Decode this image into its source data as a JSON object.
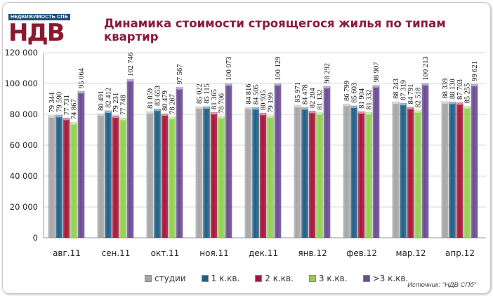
{
  "logo": {
    "top_text": "НЕДВИЖИМОСТЬ СПБ",
    "main_text": "НДВ"
  },
  "chart_data": {
    "type": "bar",
    "title": "Динамика стоимости строящегося жилья по типам квартир",
    "categories": [
      "авг.11",
      "сен.11",
      "окт.11",
      "ноя.11",
      "дек.11",
      "янв.12",
      "фев.12",
      "мар.12",
      "апр.12"
    ],
    "series": [
      {
        "name": "студии",
        "color": "#a6a6a6",
        "values": [
          79344,
          80491,
          81859,
          85022,
          84816,
          85971,
          86799,
          88243,
          88339
        ]
      },
      {
        "name": "1 к.кв.",
        "color": "#1f5f86",
        "values": [
          79590,
          82412,
          83653,
          85115,
          84505,
          84478,
          85603,
          87319,
          88130
        ]
      },
      {
        "name": "2 к.кв.",
        "color": "#a5163a",
        "values": [
          77731,
          79231,
          80479,
          81365,
          80935,
          82204,
          81904,
          84791,
          87703
        ]
      },
      {
        "name": "3 к.кв.",
        "color": "#8fd14f",
        "values": [
          74867,
          77748,
          78267,
          78706,
          79199,
          81132,
          81332,
          82518,
          85255
        ]
      },
      {
        "name": ">3 к.кв.",
        "color": "#6a4c93",
        "values": [
          95064,
          102746,
          97567,
          100073,
          100129,
          98292,
          98907,
          100213,
          99621
        ]
      }
    ],
    "ylim": [
      0,
      120000
    ],
    "yticks": [
      "0",
      "20 000",
      "40 000",
      "60 000",
      "80 000",
      "100 000",
      "120 000"
    ],
    "ytick_values": [
      0,
      20000,
      40000,
      60000,
      80000,
      100000,
      120000
    ],
    "grid": true,
    "legend": "bottom"
  },
  "source": "Источник: \"НДВ СПб\""
}
